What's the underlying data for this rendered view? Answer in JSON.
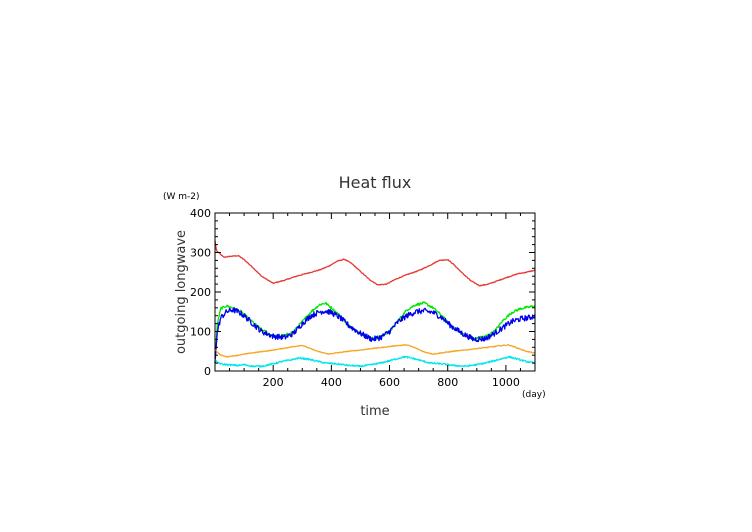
{
  "chart_data": {
    "type": "line",
    "title": "Heat flux",
    "xlabel": "time",
    "ylabel": "outgoing longwave",
    "x_unit": "(day)",
    "y_unit": "(W m-2)",
    "xlim": [
      0,
      1100
    ],
    "ylim": [
      0,
      400
    ],
    "x_ticks": [
      200,
      400,
      600,
      800,
      1000
    ],
    "y_ticks": [
      0,
      100,
      200,
      300,
      400
    ],
    "grid": false,
    "series": [
      {
        "color": "#e53935",
        "noise": 1,
        "x": [
          0,
          5,
          15,
          30,
          50,
          80,
          100,
          130,
          160,
          200,
          240,
          280,
          320,
          360,
          390,
          420,
          445,
          470,
          500,
          530,
          560,
          590,
          620,
          660,
          700,
          740,
          770,
          800,
          820,
          850,
          880,
          910,
          940,
          970,
          1000,
          1040,
          1070,
          1100
        ],
        "y": [
          330,
          305,
          298,
          288,
          290,
          292,
          282,
          262,
          240,
          222,
          230,
          240,
          248,
          256,
          265,
          278,
          283,
          272,
          252,
          232,
          218,
          220,
          232,
          244,
          254,
          268,
          280,
          282,
          270,
          248,
          228,
          216,
          220,
          228,
          236,
          246,
          250,
          255
        ]
      },
      {
        "color": "#00e600",
        "noise": 3,
        "x": [
          0,
          8,
          20,
          40,
          60,
          90,
          120,
          160,
          200,
          240,
          270,
          300,
          330,
          360,
          380,
          400,
          430,
          460,
          500,
          540,
          570,
          600,
          630,
          660,
          690,
          720,
          750,
          780,
          810,
          850,
          890,
          930,
          960,
          990,
          1020,
          1050,
          1080,
          1100
        ],
        "y": [
          20,
          120,
          158,
          165,
          160,
          150,
          130,
          105,
          88,
          90,
          100,
          125,
          150,
          168,
          172,
          160,
          140,
          115,
          95,
          82,
          88,
          100,
          128,
          155,
          168,
          172,
          160,
          140,
          115,
          95,
          82,
          88,
          100,
          128,
          148,
          158,
          162,
          165
        ]
      },
      {
        "color": "#0000ee",
        "noise": 7,
        "x": [
          0,
          8,
          20,
          40,
          60,
          80,
          100,
          130,
          160,
          200,
          240,
          270,
          300,
          330,
          360,
          380,
          400,
          430,
          460,
          500,
          540,
          570,
          600,
          630,
          660,
          690,
          720,
          750,
          780,
          810,
          850,
          890,
          930,
          960,
          990,
          1020,
          1050,
          1080,
          1100
        ],
        "y": [
          20,
          100,
          135,
          150,
          155,
          150,
          140,
          120,
          100,
          88,
          85,
          95,
          120,
          140,
          150,
          152,
          148,
          135,
          115,
          95,
          80,
          85,
          100,
          125,
          140,
          150,
          152,
          148,
          135,
          115,
          95,
          80,
          82,
          95,
          110,
          125,
          132,
          135,
          140
        ]
      },
      {
        "color": "#f5a623",
        "noise": 1,
        "x": [
          0,
          8,
          20,
          40,
          80,
          120,
          160,
          200,
          240,
          280,
          300,
          330,
          360,
          390,
          420,
          460,
          500,
          540,
          580,
          620,
          660,
          690,
          720,
          750,
          780,
          820,
          860,
          900,
          940,
          980,
          1010,
          1040,
          1070,
          1100
        ],
        "y": [
          55,
          48,
          40,
          36,
          40,
          45,
          49,
          53,
          58,
          63,
          65,
          56,
          48,
          43,
          46,
          50,
          53,
          57,
          60,
          64,
          66,
          58,
          48,
          43,
          46,
          50,
          53,
          57,
          60,
          64,
          66,
          58,
          50,
          45
        ]
      },
      {
        "color": "#00e5ee",
        "noise": 2,
        "x": [
          0,
          8,
          20,
          40,
          80,
          100,
          130,
          160,
          200,
          230,
          260,
          290,
          320,
          350,
          380,
          420,
          460,
          500,
          540,
          580,
          620,
          650,
          680,
          710,
          740,
          780,
          820,
          860,
          900,
          940,
          980,
          1010,
          1040,
          1070,
          1100
        ],
        "y": [
          30,
          22,
          18,
          16,
          14,
          16,
          12,
          12,
          18,
          24,
          28,
          33,
          30,
          25,
          20,
          18,
          14,
          12,
          16,
          22,
          30,
          36,
          32,
          26,
          20,
          18,
          14,
          12,
          16,
          22,
          30,
          36,
          30,
          24,
          20
        ]
      }
    ]
  }
}
